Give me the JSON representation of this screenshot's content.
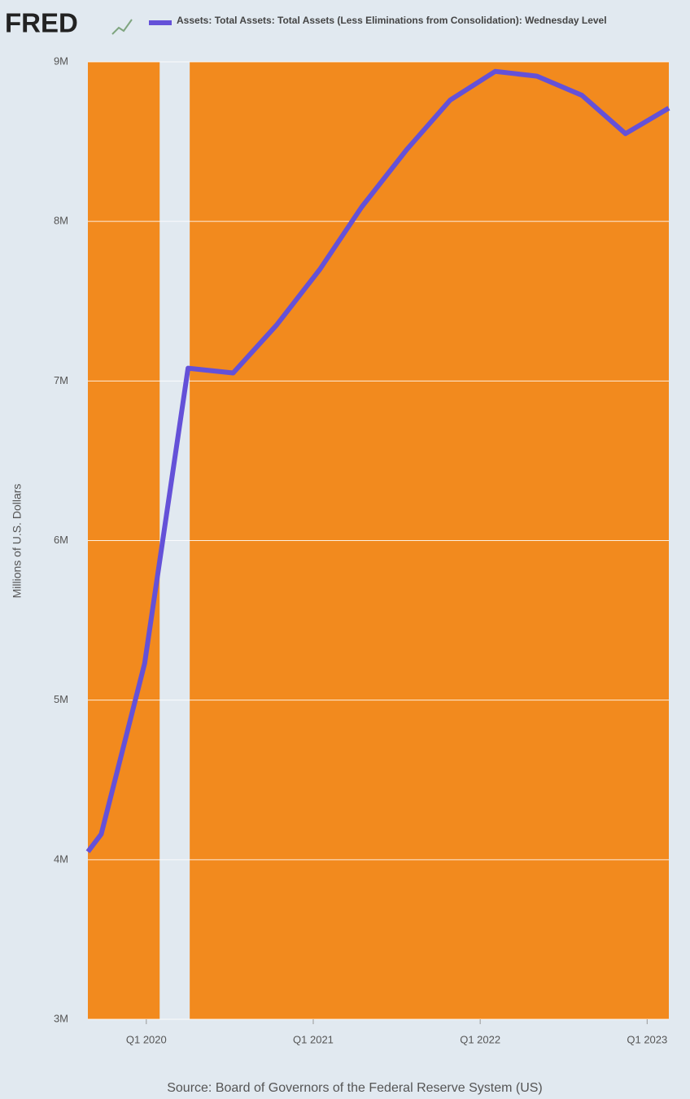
{
  "brand": "FRED",
  "chart_data": {
    "type": "line",
    "legend": "Assets: Total Assets: Total Assets (Less Eliminations from Consolidation): Wednesday Level",
    "y_label": "Millions of U.S. Dollars",
    "source": "Source: Board of Governors of the Federal Reserve System (US)",
    "x": [
      2019.65,
      2019.73,
      2019.99,
      2020.25,
      2020.52,
      2020.78,
      2021.04,
      2021.29,
      2021.56,
      2021.82,
      2022.09,
      2022.34,
      2022.61,
      2022.87,
      2023.13
    ],
    "series": [
      {
        "name": "Assets: Total Assets: Total Assets (Less Eliminations from Consolidation): Wednesday Level",
        "color": "#6451d8",
        "values": [
          4050000,
          4160000,
          5230000,
          7080000,
          7050000,
          7350000,
          7700000,
          8090000,
          8450000,
          8760000,
          8940000,
          8910000,
          8790000,
          8550000,
          8710000
        ]
      }
    ],
    "shading": [
      {
        "from": 2019.65,
        "to": 2020.08
      },
      {
        "from": 2020.26,
        "to": 2023.13
      }
    ],
    "shading_color": "#f28a1e",
    "xlim": [
      2019.65,
      2023.13
    ],
    "xticks": [
      {
        "value": 2020,
        "label": "Q1 2020"
      },
      {
        "value": 2021,
        "label": "Q1 2021"
      },
      {
        "value": 2022,
        "label": "Q1 2022"
      },
      {
        "value": 2023,
        "label": "Q1 2023"
      }
    ],
    "ylim": [
      3000000,
      9000000
    ],
    "yticks": [
      {
        "value": 3000000,
        "label": "3M"
      },
      {
        "value": 4000000,
        "label": "4M"
      },
      {
        "value": 5000000,
        "label": "5M"
      },
      {
        "value": 6000000,
        "label": "6M"
      },
      {
        "value": 7000000,
        "label": "7M"
      },
      {
        "value": 8000000,
        "label": "8M"
      },
      {
        "value": 9000000,
        "label": "9M"
      }
    ],
    "grid": true
  }
}
